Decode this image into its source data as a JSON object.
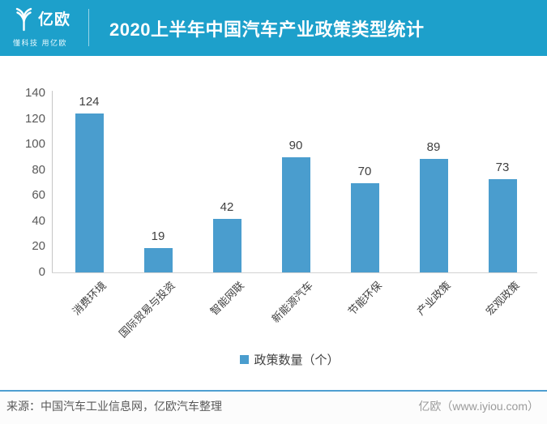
{
  "header": {
    "logo_name": "亿欧",
    "logo_tagline": "懂科技 用亿欧",
    "title": "2020上半年中国汽车产业政策类型统计"
  },
  "chart_data": {
    "type": "bar",
    "title": "2020上半年中国汽车产业政策类型统计",
    "categories": [
      "消费环境",
      "国际贸易与投资",
      "智能网联",
      "新能源汽车",
      "节能环保",
      "产业政策",
      "宏观政策"
    ],
    "series": [
      {
        "name": "政策数量（个）",
        "values": [
          124,
          19,
          42,
          90,
          70,
          89,
          73
        ]
      }
    ],
    "data_labels": [
      124,
      19,
      42,
      90,
      70,
      89,
      73
    ],
    "xlabel": "",
    "ylabel": "",
    "ylim": [
      0,
      140
    ],
    "yticks": [
      0,
      20,
      40,
      60,
      80,
      100,
      120,
      140
    ],
    "grid": false,
    "legend_position": "bottom",
    "bar_color": "#4a9dce"
  },
  "legend": {
    "label": "政策数量（个）"
  },
  "footer": {
    "source": "来源：中国汽车工业信息网，亿欧汽车整理",
    "brand": "亿欧（www.iyiou.com）"
  },
  "colors": {
    "header_bg": "#1da0cb",
    "bar": "#4a9dce",
    "footer_rule": "#4e9fd1"
  }
}
